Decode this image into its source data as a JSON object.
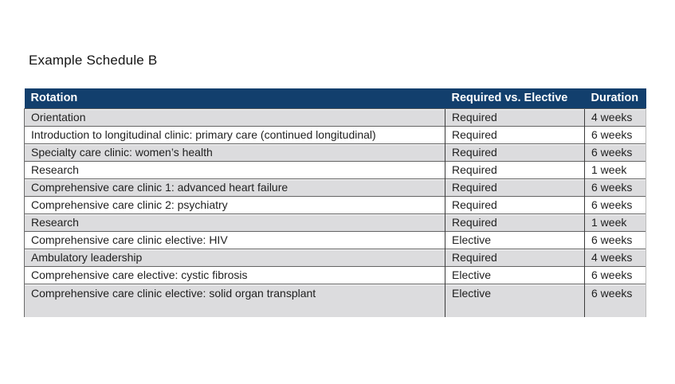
{
  "title": "Example Schedule B",
  "colors": {
    "header_bg": "#123f6d",
    "header_fg": "#ffffff",
    "row_shaded": "#dcdcde",
    "row_plain": "#ffffff"
  },
  "table": {
    "headers": {
      "rotation": "Rotation",
      "type": "Required vs. Elective",
      "duration": "Duration"
    },
    "rows": [
      {
        "rotation": "Orientation",
        "type": "Required",
        "duration": "4 weeks"
      },
      {
        "rotation": "Introduction to longitudinal clinic: primary care (continued longitudinal)",
        "type": "Required",
        "duration": "6 weeks"
      },
      {
        "rotation": "Specialty care clinic: women’s health",
        "type": "Required",
        "duration": "6 weeks"
      },
      {
        "rotation": "Research",
        "type": "Required",
        "duration": "1 week"
      },
      {
        "rotation": "Comprehensive care clinic 1: advanced heart failure",
        "type": "Required",
        "duration": "6 weeks"
      },
      {
        "rotation": "Comprehensive care clinic 2: psychiatry",
        "type": "Required",
        "duration": "6 weeks"
      },
      {
        "rotation": "Research",
        "type": "Required",
        "duration": "1 week"
      },
      {
        "rotation": "Comprehensive care clinic elective: HIV",
        "type": "Elective",
        "duration": "6 weeks"
      },
      {
        "rotation": "Ambulatory leadership",
        "type": "Required",
        "duration": "4 weeks"
      },
      {
        "rotation": "Comprehensive care elective: cystic fibrosis",
        "type": "Elective",
        "duration": "6 weeks"
      },
      {
        "rotation": "Comprehensive care clinic elective: solid organ transplant",
        "type": "Elective",
        "duration": "6 weeks"
      }
    ]
  }
}
